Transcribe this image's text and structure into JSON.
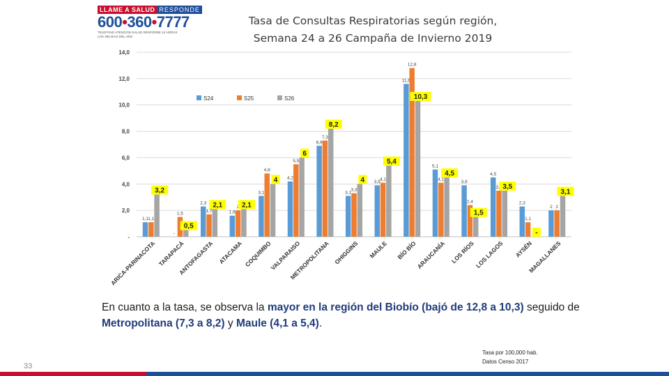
{
  "logo": {
    "top_left": "LLAME A SALUD",
    "top_right": "RESPONDE",
    "number_a": "600",
    "number_b": "360",
    "number_c": "7777",
    "small_1": "TELEFONO ATENCION SALUD RESPONDE 24 HORAS",
    "small_2": "LOS 365 DIAS DEL AÑO"
  },
  "title_line1": "Tasa de Consultas Respiratorias según región,",
  "title_line2": "Semana 24 a 26 Campaña de Invierno 2019",
  "body": {
    "t1": "En cuanto a la tasa, se observa la ",
    "t2": "mayor en la región del Biobío (bajó de 12,8 a 10,3)",
    "t3": " seguido de ",
    "t4": "Metropolitana (7,3 a 8,2)",
    "t5": " y  ",
    "t6": "Maule (4,1 a 5,4)",
    "t7": "."
  },
  "note_line1": "Tasa por 100,000 hab.",
  "note_line2": "Datos Censo 2017",
  "page_number": "33",
  "colors": {
    "s24": "#5b9bd5",
    "s25": "#ed7d31",
    "s26": "#a5a5a5",
    "highlight": "#ffff00",
    "brand_red": "#c8102e",
    "brand_blue": "#1f4e9b"
  },
  "chart_data": {
    "type": "bar",
    "ylim": [
      0,
      14
    ],
    "yticks": [
      "-",
      "2,0",
      "4,0",
      "6,0",
      "8,0",
      "10,0",
      "12,0",
      "14,0"
    ],
    "grid": true,
    "legend_position": "top-left",
    "categories": [
      "ARICA-PARINACOTA",
      "TARAPACÁ",
      "ANTOFAGASTA",
      "ATACAMA",
      "COQUIMBO",
      "VALPARAISO",
      "METROPOLITANA",
      "OHIGGINS",
      "MAULE",
      "BÍO BÍO",
      "ARAUCANÍA",
      "LOS RÍOS",
      "LOS LAGOS",
      "AYSÉN",
      "MAGALLANES"
    ],
    "series": [
      {
        "name": "S24",
        "values": [
          1.1,
          0,
          2.3,
          1.6,
          3.1,
          4.2,
          6.9,
          3.1,
          3.9,
          11.6,
          5.1,
          3.9,
          4.5,
          2.3,
          2.0
        ]
      },
      {
        "name": "S25",
        "values": [
          1.1,
          1.5,
          1.7,
          2.0,
          4.8,
          5.5,
          7.3,
          3.3,
          4.1,
          12.8,
          4.1,
          2.4,
          3.5,
          1.1,
          2.0
        ]
      },
      {
        "name": "S26",
        "values": [
          3.2,
          0.5,
          2.1,
          2.1,
          4.0,
          6.0,
          8.2,
          4.0,
          5.4,
          10.3,
          4.5,
          1.5,
          3.5,
          0,
          3.1
        ]
      }
    ],
    "bar_labels": [
      [
        "1,1",
        "1,1",
        "3,2"
      ],
      [
        "-",
        "1,5",
        "0,5"
      ],
      [
        "2,3",
        "1,7",
        "2,1"
      ],
      [
        "1,6",
        "2",
        "2,1"
      ],
      [
        "3,1",
        "4,8",
        "4"
      ],
      [
        "4,2",
        "5,5",
        "6"
      ],
      [
        "6,9",
        "7,3",
        "8,2"
      ],
      [
        "3,1",
        "3,3",
        "4"
      ],
      [
        "3,9",
        "4,1",
        "5,4"
      ],
      [
        "11,6",
        "12,8",
        "10,3"
      ],
      [
        "5,1",
        "4,1",
        "4,5"
      ],
      [
        "3,9",
        "2,4",
        "1,5"
      ],
      [
        "4,5",
        "3,5",
        "3,5"
      ],
      [
        "2,3",
        "1,1",
        "-"
      ],
      [
        "2",
        "2",
        "3,1"
      ]
    ],
    "highlighted": [
      [
        0,
        2
      ],
      [
        1,
        2
      ],
      [
        2,
        2
      ],
      [
        3,
        2
      ],
      [
        4,
        2
      ],
      [
        5,
        2
      ],
      [
        6,
        2
      ],
      [
        7,
        2
      ],
      [
        8,
        2
      ],
      [
        9,
        2
      ],
      [
        10,
        2
      ],
      [
        11,
        2
      ],
      [
        12,
        2
      ],
      [
        13,
        2
      ],
      [
        14,
        2
      ]
    ]
  }
}
